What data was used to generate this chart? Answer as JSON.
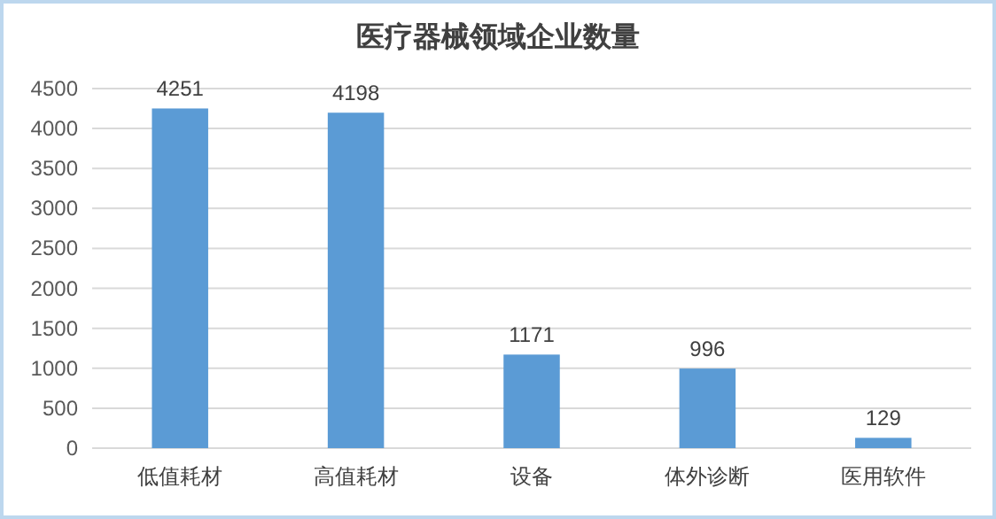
{
  "chart_data": {
    "type": "bar",
    "title": "医疗器械领域企业数量",
    "categories": [
      "低值耗材",
      "高值耗材",
      "设备",
      "体外诊断",
      "医用软件"
    ],
    "values": [
      4251,
      4198,
      1171,
      996,
      129
    ],
    "color": "#5b9bd5",
    "ylim": [
      0,
      4500
    ],
    "yticks": [
      0,
      500,
      1000,
      1500,
      2000,
      2500,
      3000,
      3500,
      4000,
      4500
    ],
    "grid": "y",
    "data_labels": true
  }
}
